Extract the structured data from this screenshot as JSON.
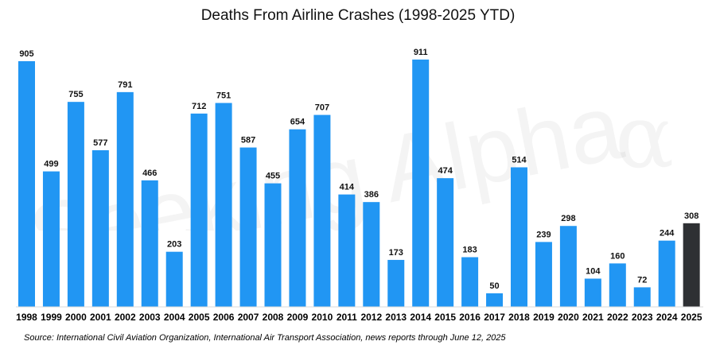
{
  "chart_data": {
    "type": "bar",
    "title": "Deaths From Airline Crashes (1998-2025 YTD)",
    "categories": [
      "1998",
      "1999",
      "2000",
      "2001",
      "2002",
      "2003",
      "2004",
      "2005",
      "2006",
      "2007",
      "2008",
      "2009",
      "2010",
      "2011",
      "2012",
      "2013",
      "2014",
      "2015",
      "2016",
      "2017",
      "2018",
      "2019",
      "2020",
      "2021",
      "2022",
      "2023",
      "2024",
      "2025"
    ],
    "values": [
      905,
      499,
      755,
      577,
      791,
      466,
      203,
      712,
      751,
      587,
      455,
      654,
      707,
      414,
      386,
      173,
      911,
      474,
      183,
      50,
      514,
      239,
      298,
      104,
      160,
      72,
      244,
      308
    ],
    "highlight_index": 27,
    "ylim": [
      0,
      1000
    ],
    "grid": false,
    "xlabel": "",
    "ylabel": "",
    "colors": {
      "bar": "#2196F3",
      "highlight": "#2E3033",
      "label": "#111111"
    }
  },
  "source": "Source: International Civil Aviation Organization, International Air Transport Association, news reports through June 12, 2025",
  "watermark": {
    "text": "Seeking Alpha",
    "symbol": "α"
  }
}
